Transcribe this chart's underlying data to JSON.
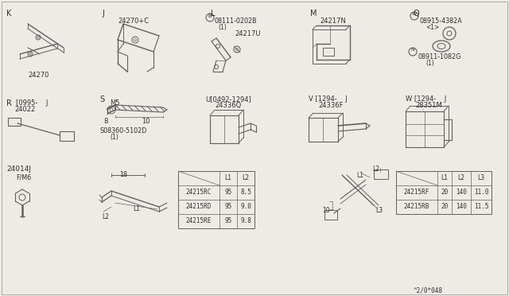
{
  "bg_color": "#eeebe5",
  "line_color": "#606060",
  "text_color": "#303030",
  "part_number_footer": "^2/0*048",
  "table1_header": [
    "",
    "L1",
    "L2"
  ],
  "table1_rows": [
    [
      "24215RC",
      "95",
      "8.5"
    ],
    [
      "24215RD",
      "95",
      "9.0"
    ],
    [
      "24215RE",
      "95",
      "9.8"
    ]
  ],
  "table2_header": [
    "",
    "L1",
    "L2",
    "L3"
  ],
  "table2_rows": [
    [
      "24215RF",
      "20",
      "140",
      "11.0"
    ],
    [
      "24215RB",
      "20",
      "140",
      "11.5"
    ]
  ]
}
